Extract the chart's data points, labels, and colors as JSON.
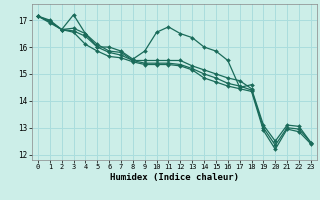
{
  "xlabel": "Humidex (Indice chaleur)",
  "bg_color": "#cceee8",
  "grid_color": "#aadddd",
  "line_color": "#1a6b5a",
  "xlim": [
    -0.5,
    23.5
  ],
  "ylim": [
    11.8,
    17.6
  ],
  "yticks": [
    12,
    13,
    14,
    15,
    16,
    17
  ],
  "xticks": [
    0,
    1,
    2,
    3,
    4,
    5,
    6,
    7,
    8,
    9,
    10,
    11,
    12,
    13,
    14,
    15,
    16,
    17,
    18,
    19,
    20,
    21,
    22,
    23
  ],
  "lines": [
    [
      17.15,
      17.0,
      16.65,
      17.2,
      16.5,
      16.0,
      16.0,
      15.85,
      15.55,
      15.85,
      16.55,
      16.75,
      16.5,
      16.35,
      16.0,
      15.85,
      15.5,
      14.5,
      14.6,
      null,
      null,
      null,
      null,
      null
    ],
    [
      17.15,
      16.95,
      16.65,
      16.7,
      16.5,
      16.1,
      15.85,
      15.8,
      15.5,
      15.5,
      15.5,
      15.5,
      15.5,
      15.3,
      15.15,
      15.0,
      14.85,
      14.75,
      14.45,
      13.1,
      12.5,
      13.1,
      13.05,
      12.45
    ],
    [
      17.15,
      16.95,
      16.65,
      16.6,
      16.4,
      16.0,
      15.8,
      15.7,
      15.5,
      15.4,
      15.4,
      15.4,
      15.35,
      15.2,
      15.0,
      14.85,
      14.65,
      14.55,
      14.4,
      13.0,
      12.35,
      13.0,
      12.95,
      12.45
    ],
    [
      17.15,
      16.9,
      16.65,
      16.55,
      16.1,
      15.85,
      15.65,
      15.6,
      15.45,
      15.35,
      15.35,
      15.35,
      15.3,
      15.15,
      14.85,
      14.7,
      14.55,
      14.45,
      14.35,
      12.9,
      12.2,
      12.95,
      12.85,
      12.4
    ]
  ]
}
